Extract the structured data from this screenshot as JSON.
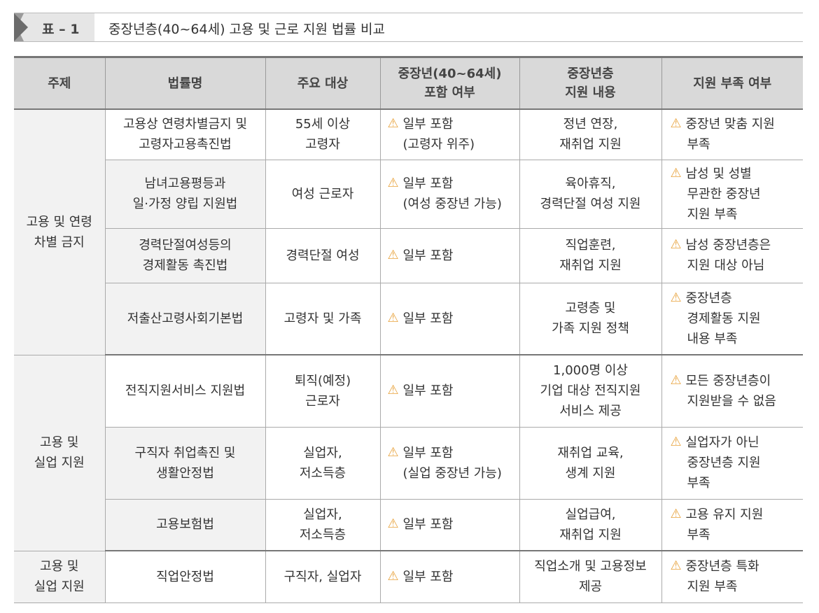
{
  "title": {
    "number": "표 – 1",
    "text": "중장년층(40~64세) 고용 및 근로 지원 법률 비교"
  },
  "headers": [
    "주제",
    "법률명",
    "주요 대상",
    "중장년(40~64세)\n포함 여부",
    "중장년층\n지원 내용",
    "지원 부족 여부"
  ],
  "colors": {
    "warning": "#e8a33d",
    "header_bg": "#d9d9d9",
    "topic_bg": "#f2f2f2"
  },
  "icon": "warning-triangle-icon",
  "groups": [
    {
      "topic": "고용 및 연령\n차별 금지",
      "rows": [
        {
          "law": "고용상 연령차별금지 및\n고령자고용촉진법",
          "target": "55세 이상\n고령자",
          "inclusion": "일부 포함\n(고령자 위주)",
          "support": "정년 연장,\n재취업 지원",
          "gap": "중장년 맞춤 지원\n부족"
        },
        {
          "law": "남녀고용평등과\n일·가정 양립 지원법",
          "target": "여성 근로자",
          "inclusion": "일부 포함\n(여성 중장년 가능)",
          "support": "육아휴직,\n경력단절 여성 지원",
          "gap": "남성 및 성별\n무관한 중장년\n지원 부족"
        },
        {
          "law": "경력단절여성등의\n경제활동 촉진법",
          "target": "경력단절 여성",
          "inclusion": "일부 포함",
          "support": "직업훈련,\n재취업 지원",
          "gap": "남성 중장년층은\n지원 대상 아님"
        },
        {
          "law": "저출산고령사회기본법",
          "target": "고령자 및 가족",
          "inclusion": "일부 포함",
          "support": "고령층 및\n가족 지원 정책",
          "gap": "중장년층\n경제활동 지원\n내용 부족"
        }
      ]
    },
    {
      "topic": "고용 및\n실업 지원",
      "rows": [
        {
          "law": "전직지원서비스 지원법",
          "target": "퇴직(예정)\n근로자",
          "inclusion": "일부 포함",
          "support": "1,000명 이상\n기업 대상 전직지원\n서비스 제공",
          "gap": "모든 중장년층이\n지원받을 수 없음"
        },
        {
          "law": "구직자 취업촉진 및\n생활안정법",
          "target": "실업자,\n저소득층",
          "inclusion": "일부 포함\n(실업 중장년 가능)",
          "support": "재취업 교육,\n생계 지원",
          "gap": "실업자가 아닌\n중장년층 지원\n부족"
        },
        {
          "law": "고용보험법",
          "target": "실업자,\n저소득층",
          "inclusion": "일부 포함",
          "support": "실업급여,\n재취업 지원",
          "gap": "고용 유지 지원\n부족"
        }
      ]
    },
    {
      "topic": "고용 및\n실업 지원",
      "rows": [
        {
          "law": "직업안정법",
          "target": "구직자, 실업자",
          "inclusion": "일부 포함",
          "support": "직업소개 및 고용정보\n제공",
          "gap": "중장년층 특화\n지원 부족"
        }
      ]
    }
  ]
}
